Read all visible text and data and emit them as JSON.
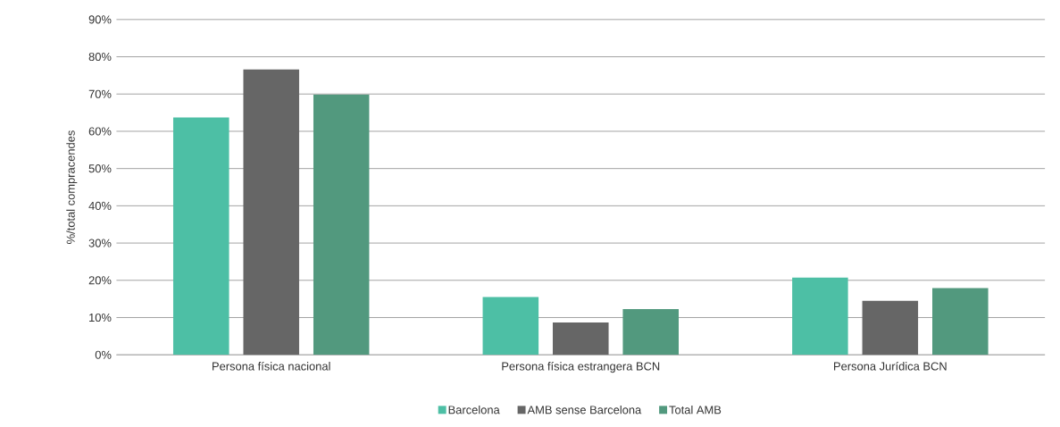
{
  "chart_data": {
    "type": "bar",
    "ylabel": "%/total compracendes",
    "categories": [
      "Persona física nacional",
      "Persona física estrangera BCN",
      "Persona Jurídica BCN"
    ],
    "series": [
      {
        "name": "Barcelona",
        "color": "#4dbfa5",
        "values": [
          63.7,
          15.5,
          20.7
        ]
      },
      {
        "name": "AMB sense Barcelona",
        "color": "#666666",
        "values": [
          76.6,
          8.7,
          14.5
        ]
      },
      {
        "name": "Total AMB",
        "color": "#52997e",
        "values": [
          69.9,
          12.3,
          17.9
        ]
      }
    ],
    "ylim": [
      0,
      90
    ],
    "yticks": [
      {
        "value": 0,
        "label": "0%"
      },
      {
        "value": 10,
        "label": "10%"
      },
      {
        "value": 20,
        "label": "20%"
      },
      {
        "value": 30,
        "label": "30%"
      },
      {
        "value": 40,
        "label": "40%"
      },
      {
        "value": 50,
        "label": "50%"
      },
      {
        "value": 60,
        "label": "60%"
      },
      {
        "value": 70,
        "label": "70%"
      },
      {
        "value": 80,
        "label": "80%"
      },
      {
        "value": 90,
        "label": "90%"
      }
    ],
    "grid": "y",
    "legend": "bottom"
  }
}
